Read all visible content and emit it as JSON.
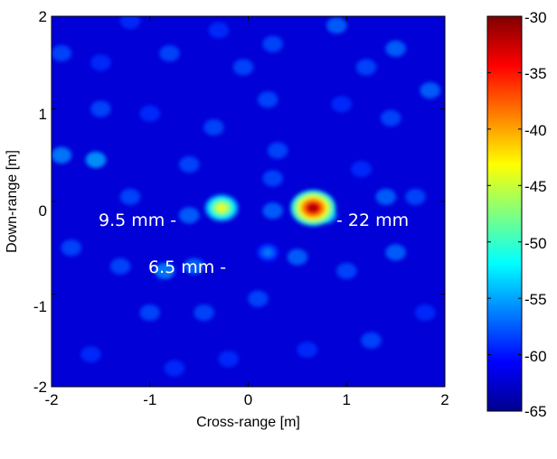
{
  "chart_data": {
    "type": "heatmap",
    "xlabel": "Cross-range [m]",
    "ylabel": "Down-range [m]",
    "xlim": [
      -2,
      2
    ],
    "ylim": [
      -2,
      2
    ],
    "x_ticks": [
      "-2",
      "-1",
      "0",
      "1",
      "2"
    ],
    "y_ticks": [
      "2",
      "1",
      "0",
      "-1",
      "-2"
    ],
    "colorbar": {
      "range": [
        -65,
        -30
      ],
      "ticks": [
        "-30",
        "-35",
        "-40",
        "-45",
        "-50",
        "-55",
        "-60",
        "-65"
      ],
      "colormap": "jet"
    },
    "background_level": -62,
    "targets": [
      {
        "label": "9.5 mm -",
        "x": -0.27,
        "y": -0.07,
        "peak": -43
      },
      {
        "label": "- 22 mm",
        "x": 0.66,
        "y": -0.07,
        "peak": -31
      },
      {
        "label": "6.5 mm -",
        "x": 0.2,
        "y": -0.55,
        "peak": -56
      }
    ],
    "speckle_blobs": [
      [
        -1.9,
        0.5,
        -56
      ],
      [
        -1.55,
        0.45,
        -55
      ],
      [
        -1.9,
        1.6,
        -58
      ],
      [
        -1.5,
        1.5,
        -59
      ],
      [
        -1.2,
        1.95,
        -59
      ],
      [
        -0.8,
        1.6,
        -58
      ],
      [
        -0.3,
        1.85,
        -59
      ],
      [
        0.25,
        1.7,
        -58
      ],
      [
        0.9,
        1.9,
        -57
      ],
      [
        1.5,
        1.65,
        -57
      ],
      [
        1.85,
        1.2,
        -57
      ],
      [
        1.45,
        0.9,
        -58
      ],
      [
        0.95,
        1.05,
        -59
      ],
      [
        0.2,
        1.1,
        -58
      ],
      [
        -0.35,
        0.8,
        -58
      ],
      [
        -1.0,
        0.95,
        -59
      ],
      [
        -1.5,
        1.0,
        -58
      ],
      [
        -1.8,
        -0.5,
        -58
      ],
      [
        -1.3,
        -0.7,
        -58
      ],
      [
        -0.85,
        -0.75,
        -56
      ],
      [
        -0.55,
        -0.7,
        -57
      ],
      [
        -1.0,
        -1.2,
        -58
      ],
      [
        -0.45,
        -1.2,
        -58
      ],
      [
        0.1,
        -1.05,
        -58
      ],
      [
        0.5,
        -0.6,
        -57
      ],
      [
        1.0,
        -0.75,
        -58
      ],
      [
        1.5,
        -0.55,
        -57
      ],
      [
        1.8,
        -1.2,
        -59
      ],
      [
        1.25,
        -1.5,
        -58
      ],
      [
        0.6,
        -1.6,
        -59
      ],
      [
        -0.2,
        -1.7,
        -59
      ],
      [
        -0.75,
        -1.8,
        -59
      ],
      [
        -1.6,
        -1.65,
        -59
      ],
      [
        1.7,
        0.05,
        -58
      ],
      [
        -1.2,
        0.05,
        -58
      ],
      [
        0.25,
        0.25,
        -58
      ],
      [
        0.3,
        0.55,
        -58
      ],
      [
        -0.6,
        0.4,
        -58
      ],
      [
        1.15,
        0.35,
        -59
      ],
      [
        0.8,
        -0.15,
        -56
      ],
      [
        -0.6,
        -0.15,
        -57
      ],
      [
        0.25,
        -0.1,
        -57
      ],
      [
        1.4,
        0.05,
        -57
      ],
      [
        -0.05,
        1.45,
        -58
      ],
      [
        1.2,
        1.45,
        -58
      ]
    ]
  }
}
